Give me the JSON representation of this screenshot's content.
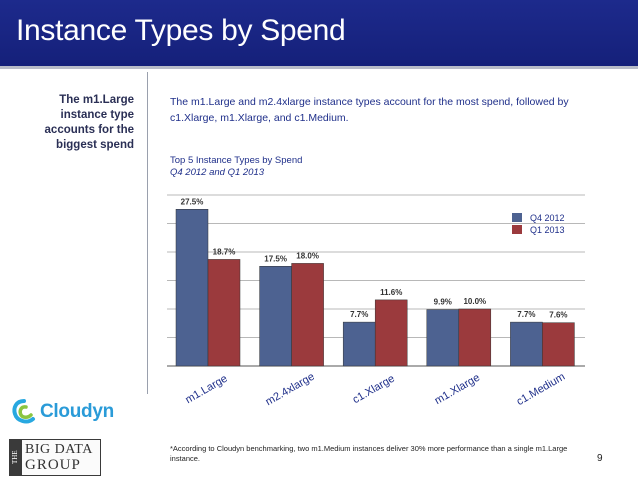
{
  "slide": {
    "title": "Instance Types by Spend",
    "side_note": "The m1.Large instance type accounts for the biggest spend",
    "intro": "The m1.Large and m2.4xlarge instance types account for the most spend, followed by c1.Xlarge, m1.Xlarge, and c1.Medium.",
    "footnote": "*According to Cloudyn benchmarking, two m1.Medium instances deliver 30% more performance than a single m1.Large instance.",
    "page_number": "9"
  },
  "logos": {
    "cloudyn": "Cloudyn",
    "big_data_group_the": "THE",
    "big_data_group_line1": "BIG DATA",
    "big_data_group_line2": "GROUP"
  },
  "colors": {
    "title_bar": "#1b2788",
    "q4": "#4d6291",
    "q1": "#9b3a3d",
    "text_blue": "#1f2f8a"
  },
  "chart_data": {
    "type": "bar",
    "title": "Top 5 Instance Types by Spend",
    "subtitle": "Q4 2012 and Q1 2013",
    "categories": [
      "m1.Large",
      "m2.4xlarge",
      "c1.Xlarge",
      "m1.Xlarge",
      "c1.Medium"
    ],
    "series": [
      {
        "name": "Q4 2012",
        "values": [
          27.5,
          17.5,
          7.7,
          9.9,
          7.7
        ],
        "labels": [
          "27.5%",
          "17.5%",
          "7.7%",
          "9.9%",
          "7.7%"
        ]
      },
      {
        "name": "Q1 2013",
        "values": [
          18.7,
          18.0,
          11.6,
          10.0,
          7.6
        ],
        "labels": [
          "18.7%",
          "18.0%",
          "11.6%",
          "10.0%",
          "7.6%"
        ]
      }
    ],
    "ylim": [
      0,
      30
    ],
    "grid": true,
    "legend": "top-right",
    "xlabel": "",
    "ylabel": ""
  }
}
